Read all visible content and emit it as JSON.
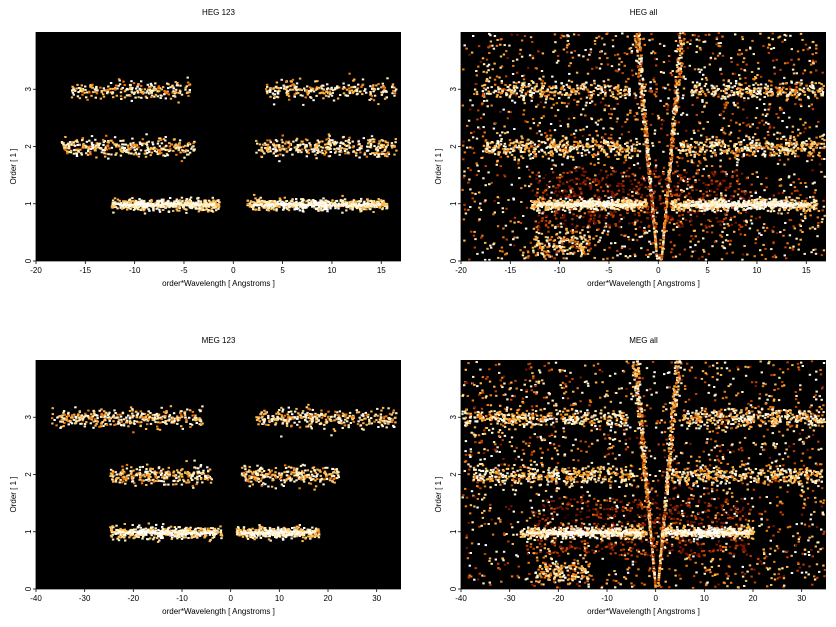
{
  "colors": {
    "background": "#000000",
    "colormap": [
      "#3a0000",
      "#7a1400",
      "#c23e00",
      "#ee7a10",
      "#ffb84a",
      "#fff0c0",
      "#ffffff"
    ]
  },
  "chart_data": [
    {
      "type": "heatmap",
      "title": "HEG 123",
      "xlabel": "order*Wavelength [ Angstroms ]",
      "ylabel": "Order [ 1 ]",
      "xlim": [
        -20,
        17
      ],
      "ylim": [
        0,
        4
      ],
      "xticks": [
        -20,
        -15,
        -10,
        -5,
        0,
        5,
        10,
        15
      ],
      "yticks": [
        0,
        1,
        2,
        3
      ],
      "bands": [
        {
          "order": 1,
          "x_ranges": [
            [
              -12.5,
              -1.5
            ],
            [
              1.3,
              15.5
            ]
          ],
          "intensity": "high"
        },
        {
          "order": 2,
          "x_ranges": [
            [
              -17.5,
              -4
            ],
            [
              2.2,
              16.5
            ]
          ],
          "intensity": "medium"
        },
        {
          "order": 3,
          "x_ranges": [
            [
              -16.5,
              -4.5
            ],
            [
              3.2,
              16.5
            ]
          ],
          "intensity": "low"
        }
      ],
      "zero_order_wedge": false
    },
    {
      "type": "heatmap",
      "title": "HEG all",
      "xlabel": "order*Wavelength [ Angstroms ]",
      "ylabel": "Order [ 1 ]",
      "xlim": [
        -20,
        17
      ],
      "ylim": [
        0,
        4
      ],
      "xticks": [
        -20,
        -15,
        -10,
        -5,
        0,
        5,
        10,
        15
      ],
      "yticks": [
        0,
        1,
        2,
        3
      ],
      "bands": [
        {
          "order": 1,
          "x_ranges": [
            [
              -13,
              -1.2
            ],
            [
              1.2,
              16
            ]
          ],
          "intensity": "high"
        },
        {
          "order": 2,
          "x_ranges": [
            [
              -18,
              -2
            ],
            [
              2,
              17
            ]
          ],
          "intensity": "medium"
        },
        {
          "order": 3,
          "x_ranges": [
            [
              -18,
              -3
            ],
            [
              3,
              17
            ]
          ],
          "intensity": "low"
        }
      ],
      "zero_order_wedge": true
    },
    {
      "type": "heatmap",
      "title": "MEG 123",
      "xlabel": "order*Wavelength [ Angstroms ]",
      "ylabel": "Order [ 1 ]",
      "xlim": [
        -40,
        35
      ],
      "ylim": [
        0,
        4
      ],
      "xticks": [
        -40,
        -30,
        -20,
        -10,
        0,
        10,
        20,
        30
      ],
      "yticks": [
        0,
        1,
        2,
        3
      ],
      "bands": [
        {
          "order": 1,
          "x_ranges": [
            [
              -25,
              -2
            ],
            [
              1,
              18
            ]
          ],
          "intensity": "high"
        },
        {
          "order": 2,
          "x_ranges": [
            [
              -25,
              -4
            ],
            [
              2,
              22
            ]
          ],
          "intensity": "medium"
        },
        {
          "order": 3,
          "x_ranges": [
            [
              -37,
              -6
            ],
            [
              5,
              34
            ]
          ],
          "intensity": "medium"
        }
      ],
      "zero_order_wedge": false
    },
    {
      "type": "heatmap",
      "title": "MEG all",
      "xlabel": "order*Wavelength [ Angstroms ]",
      "ylabel": "Order [ 1 ]",
      "xlim": [
        -40,
        35
      ],
      "ylim": [
        0,
        4
      ],
      "xticks": [
        -40,
        -30,
        -20,
        -10,
        0,
        10,
        20,
        30
      ],
      "yticks": [
        0,
        1,
        2,
        3
      ],
      "bands": [
        {
          "order": 1,
          "x_ranges": [
            [
              -28,
              -2
            ],
            [
              1,
              20
            ]
          ],
          "intensity": "high"
        },
        {
          "order": 2,
          "x_ranges": [
            [
              -38,
              -4
            ],
            [
              3,
              34
            ]
          ],
          "intensity": "medium"
        },
        {
          "order": 3,
          "x_ranges": [
            [
              -40,
              -6
            ],
            [
              5,
              35
            ]
          ],
          "intensity": "medium"
        }
      ],
      "zero_order_wedge": true
    }
  ]
}
